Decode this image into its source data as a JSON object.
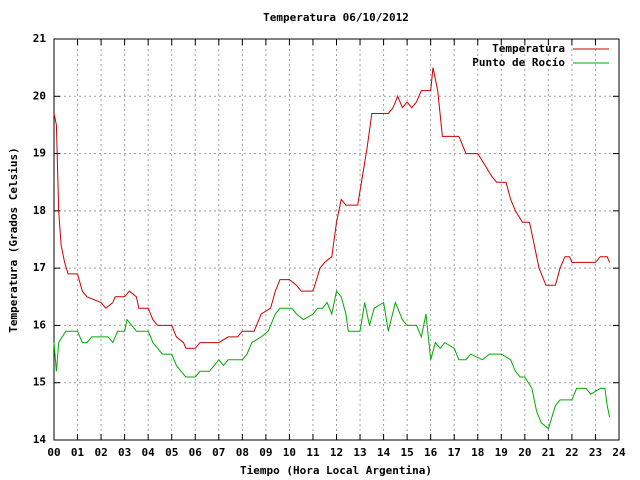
{
  "chart_data": {
    "type": "line",
    "title": "Temperatura 06/10/2012",
    "x_label": "Tiempo (Hora Local Argentina)",
    "y_label": "Temperatura (Grados Celsius)",
    "xlim": [
      0,
      24
    ],
    "ylim": [
      14,
      21
    ],
    "xticks": [
      {
        "value": 0,
        "label": "00"
      },
      {
        "value": 1,
        "label": "01"
      },
      {
        "value": 2,
        "label": "02"
      },
      {
        "value": 3,
        "label": "03"
      },
      {
        "value": 4,
        "label": "04"
      },
      {
        "value": 5,
        "label": "05"
      },
      {
        "value": 6,
        "label": "06"
      },
      {
        "value": 7,
        "label": "07"
      },
      {
        "value": 8,
        "label": "08"
      },
      {
        "value": 9,
        "label": "09"
      },
      10,
      11,
      12,
      13,
      14,
      15,
      16,
      17,
      18,
      19,
      20,
      21,
      22,
      23,
      24
    ],
    "yticks": [
      14,
      15,
      16,
      17,
      18,
      19,
      20,
      21
    ],
    "grid": true,
    "legend": "top-right",
    "series": [
      {
        "name": "Temperatura",
        "color": "#cc0000",
        "x": [
          0,
          0.1,
          0.2,
          0.3,
          0.45,
          0.6,
          1.0,
          1.2,
          1.4,
          2.0,
          2.2,
          2.5,
          2.6,
          3.0,
          3.2,
          3.5,
          3.6,
          4.0,
          4.2,
          4.4,
          5.0,
          5.2,
          5.5,
          5.6,
          6.0,
          6.2,
          7.0,
          7.4,
          7.8,
          8.0,
          8.5,
          8.6,
          8.8,
          9.2,
          9.4,
          9.6,
          10.0,
          10.3,
          10.5,
          11.0,
          11.3,
          11.5,
          11.8,
          12.0,
          12.2,
          12.4,
          12.7,
          12.9,
          13.1,
          13.3,
          13.5,
          14.0,
          14.2,
          14.4,
          14.6,
          14.8,
          15.0,
          15.2,
          15.4,
          15.6,
          16.0,
          16.1,
          16.3,
          16.5,
          17.0,
          17.2,
          17.4,
          17.5,
          18.0,
          18.3,
          18.6,
          18.8,
          19.2,
          19.4,
          19.6,
          19.9,
          20.2,
          20.4,
          20.6,
          20.9,
          21.3,
          21.5,
          21.7,
          21.9,
          22.0,
          23.0,
          23.2,
          23.5,
          23.6
        ],
        "values": [
          19.7,
          19.5,
          18.0,
          17.4,
          17.1,
          16.9,
          16.9,
          16.6,
          16.5,
          16.4,
          16.3,
          16.4,
          16.5,
          16.5,
          16.6,
          16.5,
          16.3,
          16.3,
          16.1,
          16.0,
          16.0,
          15.8,
          15.7,
          15.6,
          15.6,
          15.7,
          15.7,
          15.8,
          15.8,
          15.9,
          15.9,
          16.0,
          16.2,
          16.3,
          16.6,
          16.8,
          16.8,
          16.7,
          16.6,
          16.6,
          17.0,
          17.1,
          17.2,
          17.8,
          18.2,
          18.1,
          18.1,
          18.1,
          18.6,
          19.1,
          19.7,
          19.7,
          19.7,
          19.8,
          20.0,
          19.8,
          19.9,
          19.8,
          19.9,
          20.1,
          20.1,
          20.5,
          20.1,
          19.3,
          19.3,
          19.3,
          19.1,
          19.0,
          19.0,
          18.8,
          18.6,
          18.5,
          18.5,
          18.2,
          18.0,
          17.8,
          17.8,
          17.4,
          17.0,
          16.7,
          16.7,
          17.0,
          17.2,
          17.2,
          17.1,
          17.1,
          17.2,
          17.2,
          17.1
        ]
      },
      {
        "name": "Punto de Rocío",
        "color": "#00aa00",
        "x": [
          0,
          0.1,
          0.2,
          0.35,
          0.5,
          1.0,
          1.2,
          1.4,
          1.6,
          2.3,
          2.5,
          2.7,
          3.0,
          3.1,
          3.3,
          3.5,
          4.0,
          4.2,
          4.4,
          4.6,
          5.0,
          5.2,
          5.4,
          5.6,
          6.0,
          6.2,
          6.6,
          7.0,
          7.2,
          7.4,
          8.0,
          8.2,
          8.4,
          8.8,
          9.1,
          9.4,
          9.6,
          10.1,
          10.3,
          10.6,
          11.0,
          11.2,
          11.4,
          11.6,
          11.8,
          12.0,
          12.2,
          12.4,
          12.5,
          13.0,
          13.2,
          13.4,
          13.6,
          14.0,
          14.2,
          14.5,
          14.8,
          15.0,
          15.4,
          15.6,
          15.8,
          16.0,
          16.2,
          16.4,
          16.6,
          17.0,
          17.2,
          17.5,
          17.7,
          18.2,
          18.5,
          19.0,
          19.4,
          19.6,
          19.8,
          20.0,
          20.3,
          20.5,
          20.7,
          21.0,
          21.3,
          21.5,
          22.0,
          22.2,
          22.6,
          22.8,
          23.2,
          23.4,
          23.5,
          23.6
        ],
        "values": [
          15.7,
          15.2,
          15.7,
          15.8,
          15.9,
          15.9,
          15.7,
          15.7,
          15.8,
          15.8,
          15.7,
          15.9,
          15.9,
          16.1,
          16.0,
          15.9,
          15.9,
          15.7,
          15.6,
          15.5,
          15.5,
          15.3,
          15.2,
          15.1,
          15.1,
          15.2,
          15.2,
          15.4,
          15.3,
          15.4,
          15.4,
          15.5,
          15.7,
          15.8,
          15.9,
          16.2,
          16.3,
          16.3,
          16.2,
          16.1,
          16.2,
          16.3,
          16.3,
          16.4,
          16.2,
          16.6,
          16.5,
          16.2,
          15.9,
          15.9,
          16.4,
          16.0,
          16.3,
          16.4,
          15.9,
          16.4,
          16.1,
          16.0,
          16.0,
          15.8,
          16.2,
          15.4,
          15.7,
          15.6,
          15.7,
          15.6,
          15.4,
          15.4,
          15.5,
          15.4,
          15.5,
          15.5,
          15.4,
          15.2,
          15.1,
          15.1,
          14.9,
          14.5,
          14.3,
          14.2,
          14.6,
          14.7,
          14.7,
          14.9,
          14.9,
          14.8,
          14.9,
          14.9,
          14.6,
          14.4
        ]
      }
    ]
  }
}
